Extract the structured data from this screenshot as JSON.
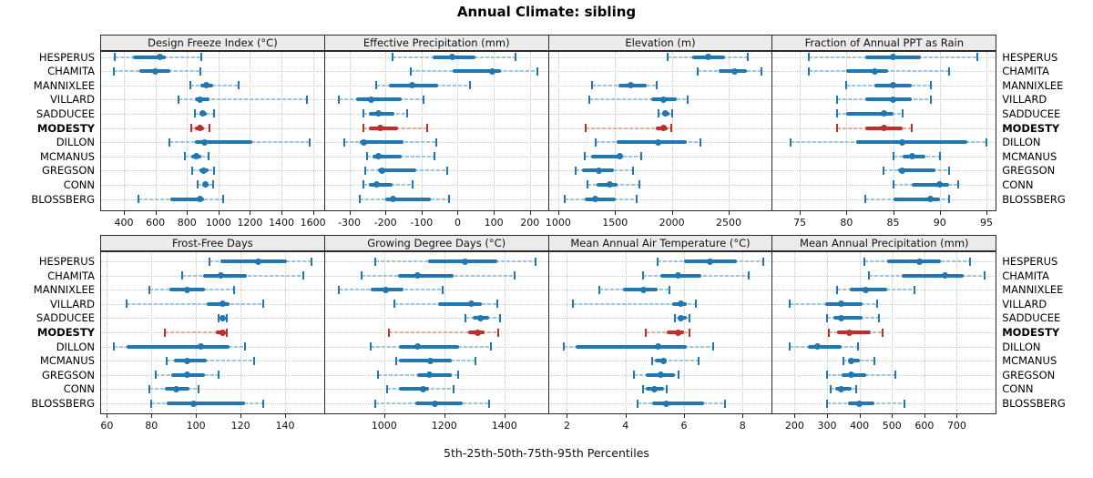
{
  "title": "Annual Climate: sibling",
  "caption": "5th-25th-50th-75th-95th Percentiles",
  "stations": [
    "HESPERUS",
    "CHAMITA",
    "MANNIXLEE",
    "VILLARD",
    "SADDUCEE",
    "MODESTY",
    "DILLON",
    "MCMANUS",
    "GREGSON",
    "CONN",
    "BLOSSBERG"
  ],
  "highlight_station": "MODESTY",
  "percentiles": [
    "5th",
    "25th",
    "50th",
    "75th",
    "95th"
  ],
  "colors": {
    "blue": "#1F77B4",
    "blue_light": "#9CC6E4",
    "red": "#BE2F2B",
    "red_light": "#E9A9A4",
    "grid": "#C9C9C9",
    "strip_bg": "#EBEBEB",
    "border": "#2A2A2A"
  },
  "chart_data": [
    {
      "type": "interval",
      "row": 0,
      "col": 0,
      "title": "Design Freeze Index (°C)",
      "ticks": [
        400,
        600,
        800,
        1000,
        1200,
        1400,
        1600
      ],
      "axis": [
        250,
        1670
      ],
      "series": [
        {
          "name": "HESPERUS",
          "values": [
            340,
            460,
            630,
            665,
            890
          ]
        },
        {
          "name": "CHAMITA",
          "values": [
            335,
            500,
            600,
            695,
            885
          ]
        },
        {
          "name": "MANNIXLEE",
          "values": [
            820,
            885,
            925,
            965,
            1130
          ]
        },
        {
          "name": "VILLARD",
          "values": [
            745,
            850,
            885,
            945,
            1560
          ]
        },
        {
          "name": "SADDUCEE",
          "values": [
            850,
            880,
            900,
            925,
            975
          ]
        },
        {
          "name": "MODESTY",
          "values": [
            825,
            850,
            885,
            910,
            945
          ]
        },
        {
          "name": "DILLON",
          "values": [
            690,
            850,
            910,
            1215,
            1580
          ]
        },
        {
          "name": "MCMANUS",
          "values": [
            790,
            825,
            860,
            890,
            940
          ]
        },
        {
          "name": "GREGSON",
          "values": [
            835,
            880,
            905,
            935,
            975
          ]
        },
        {
          "name": "CONN",
          "values": [
            870,
            900,
            915,
            940,
            965
          ]
        },
        {
          "name": "BLOSSBERG",
          "values": [
            495,
            695,
            880,
            910,
            1030
          ]
        }
      ]
    },
    {
      "type": "interval",
      "row": 0,
      "col": 1,
      "title": "Effective Precipitation (mm)",
      "ticks": [
        -300,
        -200,
        -100,
        0,
        100,
        200
      ],
      "axis": [
        -370,
        250
      ],
      "series": [
        {
          "name": "HESPERUS",
          "values": [
            -180,
            -70,
            -15,
            50,
            160
          ]
        },
        {
          "name": "CHAMITA",
          "values": [
            -130,
            -15,
            95,
            120,
            220
          ]
        },
        {
          "name": "MANNIXLEE",
          "values": [
            -225,
            -190,
            -125,
            -55,
            35
          ]
        },
        {
          "name": "VILLARD",
          "values": [
            -330,
            -280,
            -240,
            -155,
            -95
          ]
        },
        {
          "name": "SADDUCEE",
          "values": [
            -260,
            -245,
            -220,
            -175,
            -140
          ]
        },
        {
          "name": "MODESTY",
          "values": [
            -260,
            -245,
            -215,
            -165,
            -85
          ]
        },
        {
          "name": "DILLON",
          "values": [
            -315,
            -270,
            -260,
            -150,
            -60
          ]
        },
        {
          "name": "MCMANUS",
          "values": [
            -250,
            -235,
            -220,
            -155,
            -65
          ]
        },
        {
          "name": "GREGSON",
          "values": [
            -255,
            -220,
            -210,
            -115,
            -30
          ]
        },
        {
          "name": "CONN",
          "values": [
            -260,
            -245,
            -225,
            -180,
            -125
          ]
        },
        {
          "name": "BLOSSBERG",
          "values": [
            -270,
            -200,
            -180,
            -75,
            -25
          ]
        }
      ]
    },
    {
      "type": "interval",
      "row": 0,
      "col": 2,
      "title": "Elevation (m)",
      "ticks": [
        1000,
        1500,
        2000,
        2500
      ],
      "axis": [
        910,
        2880
      ],
      "series": [
        {
          "name": "HESPERUS",
          "values": [
            1960,
            2180,
            2320,
            2470,
            2670
          ]
        },
        {
          "name": "CHAMITA",
          "values": [
            2230,
            2410,
            2555,
            2660,
            2790
          ]
        },
        {
          "name": "MANNIXLEE",
          "values": [
            1295,
            1530,
            1640,
            1780,
            1870
          ]
        },
        {
          "name": "VILLARD",
          "values": [
            1275,
            1820,
            1930,
            2040,
            2140
          ]
        },
        {
          "name": "SADDUCEE",
          "values": [
            1885,
            1915,
            1940,
            1980,
            2000
          ]
        },
        {
          "name": "MODESTY",
          "values": [
            1245,
            1860,
            1930,
            1965,
            1995
          ]
        },
        {
          "name": "DILLON",
          "values": [
            1330,
            1515,
            1875,
            2130,
            2250
          ]
        },
        {
          "name": "MCMANUS",
          "values": [
            1235,
            1290,
            1545,
            1570,
            1730
          ]
        },
        {
          "name": "GREGSON",
          "values": [
            1155,
            1210,
            1360,
            1490,
            1655
          ]
        },
        {
          "name": "CONN",
          "values": [
            1260,
            1340,
            1455,
            1520,
            1715
          ]
        },
        {
          "name": "BLOSSBERG",
          "values": [
            1055,
            1235,
            1325,
            1510,
            1690
          ]
        }
      ]
    },
    {
      "type": "interval",
      "row": 0,
      "col": 3,
      "title": "Fraction of Annual PPT as Rain",
      "ticks": [
        75,
        80,
        85,
        90,
        95
      ],
      "axis": [
        72,
        96
      ],
      "series": [
        {
          "name": "HESPERUS",
          "values": [
            76,
            82,
            85,
            88,
            94
          ]
        },
        {
          "name": "CHAMITA",
          "values": [
            76,
            80,
            83,
            84.5,
            91
          ]
        },
        {
          "name": "MANNIXLEE",
          "values": [
            80,
            83,
            85,
            87,
            89
          ]
        },
        {
          "name": "VILLARD",
          "values": [
            79,
            82,
            85,
            87,
            89
          ]
        },
        {
          "name": "SADDUCEE",
          "values": [
            79,
            80,
            84,
            85,
            86
          ]
        },
        {
          "name": "MODESTY",
          "values": [
            79,
            82,
            84,
            86,
            87
          ]
        },
        {
          "name": "DILLON",
          "values": [
            74,
            81,
            86,
            93,
            95
          ]
        },
        {
          "name": "MCMANUS",
          "values": [
            85,
            86,
            87,
            88.5,
            90
          ]
        },
        {
          "name": "GREGSON",
          "values": [
            84,
            85.5,
            86,
            89.5,
            91
          ]
        },
        {
          "name": "CONN",
          "values": [
            85,
            87,
            90,
            91,
            92
          ]
        },
        {
          "name": "BLOSSBERG",
          "values": [
            82,
            85,
            89,
            90,
            91
          ]
        }
      ]
    },
    {
      "type": "interval",
      "row": 1,
      "col": 0,
      "title": "Frost-Free Days",
      "ticks": [
        60,
        80,
        100,
        120,
        140
      ],
      "axis": [
        57,
        157.5
      ],
      "series": [
        {
          "name": "HESPERUS",
          "values": [
            106,
            111,
            128,
            141,
            152
          ]
        },
        {
          "name": "CHAMITA",
          "values": [
            94,
            103,
            111,
            123,
            148
          ]
        },
        {
          "name": "MANNIXLEE",
          "values": [
            79,
            88,
            96,
            104,
            117
          ]
        },
        {
          "name": "VILLARD",
          "values": [
            69,
            105,
            112,
            115,
            130
          ]
        },
        {
          "name": "SADDUCEE",
          "values": [
            110,
            111,
            112,
            113,
            114
          ]
        },
        {
          "name": "MODESTY",
          "values": [
            86,
            109,
            112,
            113,
            114
          ]
        },
        {
          "name": "DILLON",
          "values": [
            63,
            69,
            102,
            115,
            122
          ]
        },
        {
          "name": "MCMANUS",
          "values": [
            87,
            90,
            96,
            105,
            126
          ]
        },
        {
          "name": "GREGSON",
          "values": [
            82,
            89,
            96,
            104,
            110
          ]
        },
        {
          "name": "CONN",
          "values": [
            79,
            86,
            91,
            97,
            101
          ]
        },
        {
          "name": "BLOSSBERG",
          "values": [
            80,
            87,
            99,
            122,
            130
          ]
        }
      ]
    },
    {
      "type": "interval",
      "row": 1,
      "col": 1,
      "title": "Growing Degree Days (°C)",
      "ticks": [
        1000,
        1200,
        1400
      ],
      "axis": [
        800,
        1545
      ],
      "series": [
        {
          "name": "HESPERUS",
          "values": [
            970,
            1145,
            1270,
            1375,
            1505
          ]
        },
        {
          "name": "CHAMITA",
          "values": [
            925,
            1045,
            1110,
            1230,
            1435
          ]
        },
        {
          "name": "MANNIXLEE",
          "values": [
            850,
            955,
            1005,
            1065,
            1195
          ]
        },
        {
          "name": "VILLARD",
          "values": [
            1035,
            1180,
            1290,
            1325,
            1375
          ]
        },
        {
          "name": "SADDUCEE",
          "values": [
            1270,
            1295,
            1320,
            1350,
            1385
          ]
        },
        {
          "name": "MODESTY",
          "values": [
            1015,
            1280,
            1310,
            1335,
            1380
          ]
        },
        {
          "name": "DILLON",
          "values": [
            955,
            1050,
            1110,
            1250,
            1355
          ]
        },
        {
          "name": "MCMANUS",
          "values": [
            1040,
            1050,
            1155,
            1225,
            1305
          ]
        },
        {
          "name": "GREGSON",
          "values": [
            980,
            1110,
            1150,
            1225,
            1245
          ]
        },
        {
          "name": "CONN",
          "values": [
            1010,
            1050,
            1130,
            1150,
            1230
          ]
        },
        {
          "name": "BLOSSBERG",
          "values": [
            970,
            1105,
            1170,
            1260,
            1350
          ]
        }
      ]
    },
    {
      "type": "interval",
      "row": 1,
      "col": 2,
      "title": "Mean Annual Air Temperature (°C)",
      "ticks": [
        2,
        4,
        6,
        8
      ],
      "axis": [
        1.35,
        9.0
      ],
      "series": [
        {
          "name": "HESPERUS",
          "values": [
            5.1,
            6.0,
            6.9,
            7.8,
            8.7
          ]
        },
        {
          "name": "CHAMITA",
          "values": [
            4.6,
            5.2,
            5.8,
            6.6,
            8.2
          ]
        },
        {
          "name": "MANNIXLEE",
          "values": [
            3.1,
            3.9,
            4.6,
            5.1,
            5.5
          ]
        },
        {
          "name": "VILLARD",
          "values": [
            2.2,
            5.6,
            5.9,
            6.1,
            6.4
          ]
        },
        {
          "name": "SADDUCEE",
          "values": [
            5.7,
            5.8,
            5.9,
            6.1,
            6.2
          ]
        },
        {
          "name": "MODESTY",
          "values": [
            4.7,
            5.4,
            5.8,
            6.0,
            6.2
          ]
        },
        {
          "name": "DILLON",
          "values": [
            1.9,
            2.3,
            5.1,
            6.1,
            7.0
          ]
        },
        {
          "name": "MCMANUS",
          "values": [
            4.9,
            5.0,
            5.3,
            5.4,
            6.5
          ]
        },
        {
          "name": "GREGSON",
          "values": [
            4.3,
            4.7,
            5.2,
            5.7,
            5.8
          ]
        },
        {
          "name": "CONN",
          "values": [
            4.6,
            4.7,
            5.0,
            5.3,
            5.4
          ]
        },
        {
          "name": "BLOSSBERG",
          "values": [
            4.4,
            4.9,
            5.4,
            6.7,
            7.4
          ]
        }
      ]
    },
    {
      "type": "interval",
      "row": 1,
      "col": 3,
      "title": "Mean Annual Precipitation (mm)",
      "ticks": [
        200,
        300,
        400,
        500,
        600,
        700
      ],
      "axis": [
        130,
        820
      ],
      "series": [
        {
          "name": "HESPERUS",
          "values": [
            415,
            485,
            585,
            650,
            740
          ]
        },
        {
          "name": "CHAMITA",
          "values": [
            430,
            530,
            665,
            720,
            785
          ]
        },
        {
          "name": "MANNIXLEE",
          "values": [
            330,
            370,
            420,
            485,
            570
          ]
        },
        {
          "name": "VILLARD",
          "values": [
            185,
            295,
            345,
            410,
            455
          ]
        },
        {
          "name": "SADDUCEE",
          "values": [
            300,
            320,
            345,
            410,
            460
          ]
        },
        {
          "name": "MODESTY",
          "values": [
            305,
            330,
            370,
            435,
            470
          ]
        },
        {
          "name": "DILLON",
          "values": [
            185,
            240,
            270,
            345,
            395
          ]
        },
        {
          "name": "MCMANUS",
          "values": [
            350,
            365,
            375,
            400,
            445
          ]
        },
        {
          "name": "GREGSON",
          "values": [
            300,
            345,
            375,
            420,
            510
          ]
        },
        {
          "name": "CONN",
          "values": [
            310,
            325,
            345,
            375,
            390
          ]
        },
        {
          "name": "BLOSSBERG",
          "values": [
            300,
            365,
            400,
            445,
            540
          ]
        }
      ]
    }
  ]
}
